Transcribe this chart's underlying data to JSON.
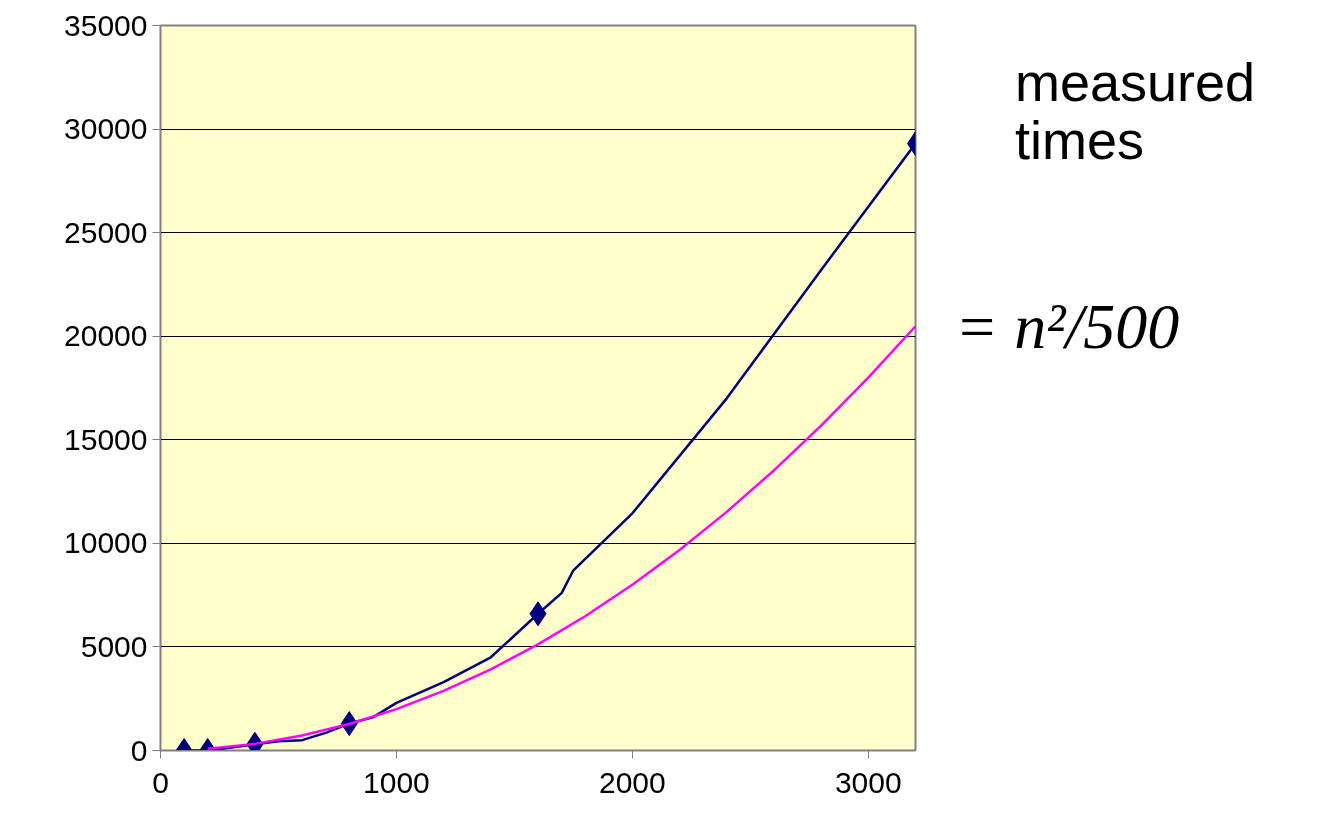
{
  "chart_data": {
    "type": "line",
    "xlim": [
      0,
      3200
    ],
    "ylim": [
      0,
      35000
    ],
    "xticks": [
      0,
      1000,
      2000,
      3000
    ],
    "yticks": [
      0,
      5000,
      10000,
      15000,
      20000,
      25000,
      30000,
      35000
    ],
    "grid": "y",
    "series": [
      {
        "name": "measured times",
        "marker": "none",
        "color": "#000080",
        "x": [
          100,
          200,
          300,
          400,
          500,
          600,
          700,
          800,
          900,
          1000,
          1200,
          1400,
          1600,
          1700,
          1750,
          2000,
          2400,
          2800,
          3200
        ],
        "values": [
          0,
          0,
          150,
          300,
          450,
          500,
          850,
          1300,
          1600,
          2300,
          3300,
          4500,
          6600,
          7600,
          8700,
          11450,
          17000,
          23200,
          29300
        ]
      },
      {
        "type": "scatter",
        "marker": "diamond",
        "color": "#000080",
        "x": [
          100,
          200,
          400,
          800,
          1600,
          3200
        ],
        "values": [
          0,
          0,
          300,
          1300,
          6600,
          29300
        ]
      },
      {
        "name": "= n²/500",
        "marker": "none",
        "color": "#ff00ff",
        "x": [
          200,
          400,
          600,
          800,
          1000,
          1200,
          1400,
          1600,
          1800,
          2000,
          2200,
          2400,
          2600,
          2800,
          3000,
          3200
        ],
        "values": [
          80,
          320,
          720,
          1280,
          2000,
          2880,
          3920,
          5120,
          6480,
          8000,
          9680,
          11520,
          13520,
          15680,
          18000,
          20480
        ]
      }
    ]
  }
}
